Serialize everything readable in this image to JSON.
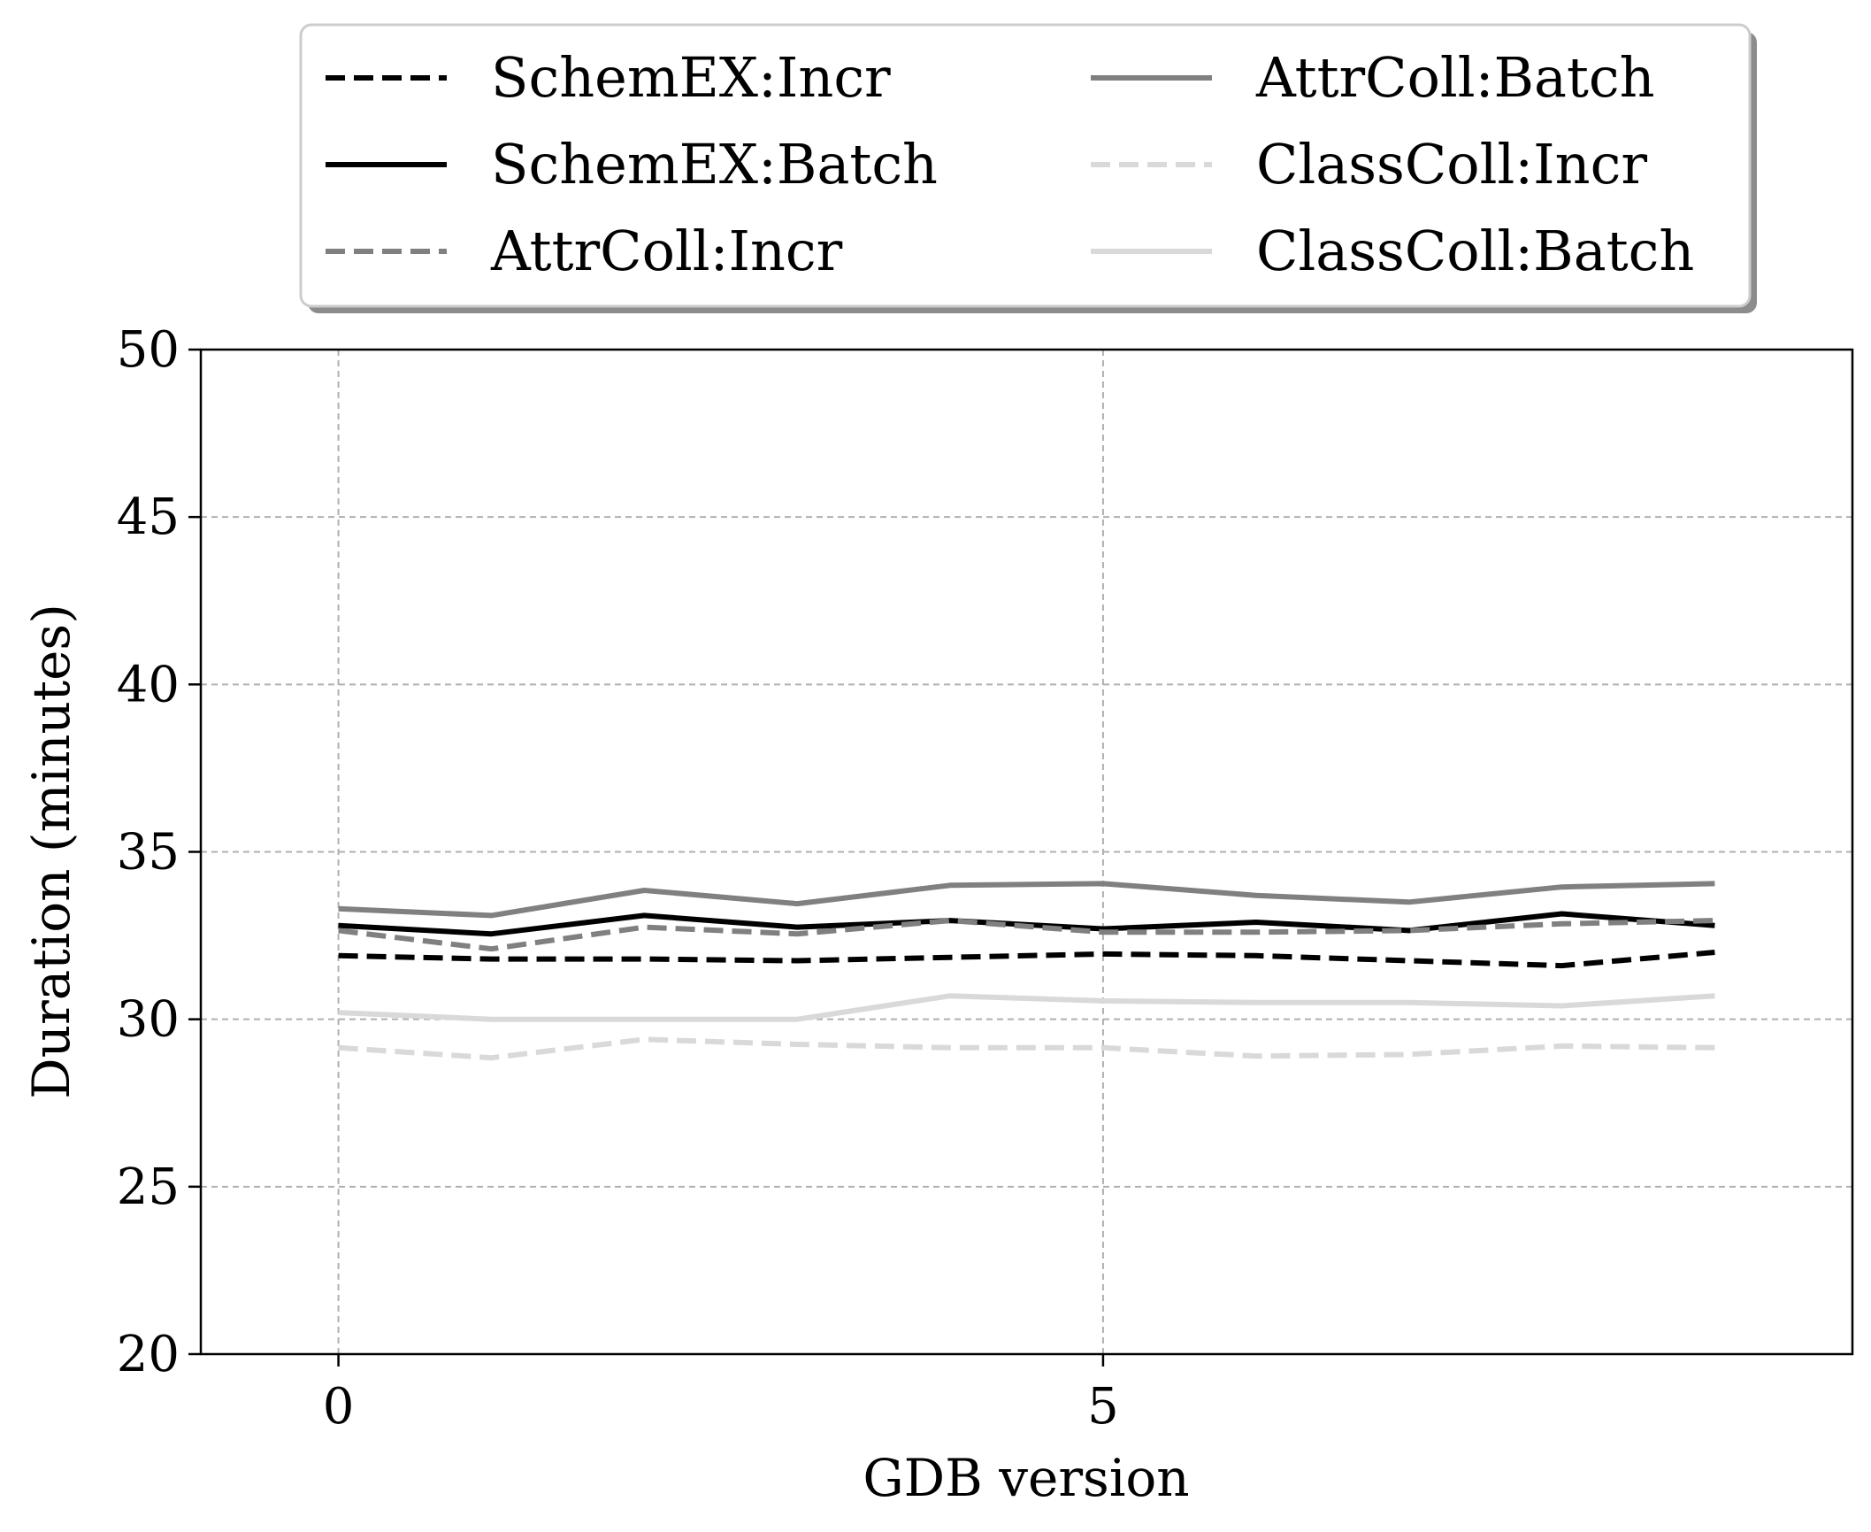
{
  "chart_data": {
    "type": "line",
    "title": "",
    "xlabel": "GDB version",
    "ylabel": "Duration (minutes)",
    "xlim": [
      -0.9,
      9.9
    ],
    "ylim": [
      20,
      50
    ],
    "xticks": [
      0,
      5
    ],
    "yticks": [
      20,
      25,
      30,
      35,
      40,
      45,
      50
    ],
    "grid": true,
    "legend_position": "top-center",
    "x": [
      0,
      1,
      2,
      3,
      4,
      5,
      6,
      7,
      8,
      9
    ],
    "series": [
      {
        "name": "SchemEX:Incr",
        "color": "#000000",
        "dash": "dashed",
        "values": [
          31.9,
          31.8,
          31.8,
          31.75,
          31.85,
          31.95,
          31.9,
          31.75,
          31.6,
          32.0
        ]
      },
      {
        "name": "SchemEX:Batch",
        "color": "#000000",
        "dash": "solid",
        "values": [
          32.8,
          32.55,
          33.1,
          32.75,
          32.95,
          32.7,
          32.9,
          32.65,
          33.15,
          32.8
        ]
      },
      {
        "name": "AttrColl:Incr",
        "color": "#808080",
        "dash": "dashed",
        "values": [
          32.65,
          32.1,
          32.75,
          32.55,
          32.95,
          32.6,
          32.6,
          32.65,
          32.85,
          32.95
        ]
      },
      {
        "name": "AttrColl:Batch",
        "color": "#808080",
        "dash": "solid",
        "values": [
          33.3,
          33.1,
          33.85,
          33.45,
          34.0,
          34.05,
          33.7,
          33.5,
          33.95,
          34.05
        ]
      },
      {
        "name": "ClassColl:Incr",
        "color": "#d9d9d9",
        "dash": "dashed",
        "values": [
          29.15,
          28.85,
          29.4,
          29.25,
          29.15,
          29.15,
          28.9,
          28.95,
          29.2,
          29.15
        ]
      },
      {
        "name": "ClassColl:Batch",
        "color": "#d9d9d9",
        "dash": "solid",
        "values": [
          30.2,
          30.0,
          30.0,
          30.0,
          30.7,
          30.55,
          30.5,
          30.5,
          30.4,
          30.7
        ]
      }
    ]
  }
}
